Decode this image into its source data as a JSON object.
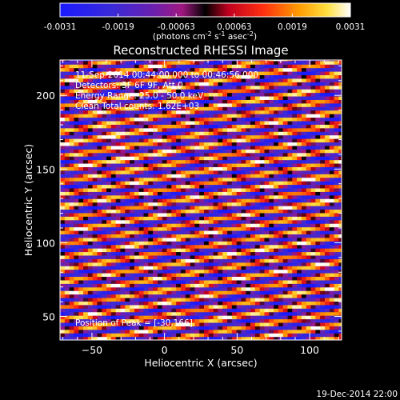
{
  "chart_data": {
    "type": "heatmap",
    "title": "Reconstructed RHESSI Image",
    "xlabel": "Heliocentric X (arcsec)",
    "ylabel": "Heliocentric Y (arcsec)",
    "xlim": [
      -72,
      122
    ],
    "ylim": [
      34,
      224
    ],
    "x_ticks": [
      -50,
      0,
      50,
      100
    ],
    "y_ticks": [
      50,
      100,
      150,
      200
    ],
    "colorbar": {
      "colormap": "hot-on-blue",
      "range": [
        -0.0031,
        0.0031
      ],
      "ticks": [
        "-0.0031",
        "-0.0019",
        "-0.00063",
        "0.00063",
        "0.0019",
        "0.0031"
      ],
      "units_prefix": "(photons cm",
      "units_exp1": "-2",
      "units_mid": " s",
      "units_exp2": "-1",
      "units_mid2": " asec",
      "units_exp3": "-2",
      "units_suffix": ")"
    },
    "annotations": [
      "11-Sep-2014 00:44:00.000 to 00:46:56.000",
      "Detectors: 3F 6F 9F, Att 0",
      "Energy Range: 25.0 - 50.0 keV",
      "Clean    Total counts: 1.62E+03"
    ],
    "peak_label": "Position of Peak = [-30,166]",
    "peak_position": [
      -30,
      166
    ],
    "stripe_pattern": {
      "orientation": "diagonal fringes rising to the right",
      "approx_period_arcsec": 8.5
    }
  },
  "footer": {
    "timestamp": "19-Dec-2014 22:00"
  }
}
